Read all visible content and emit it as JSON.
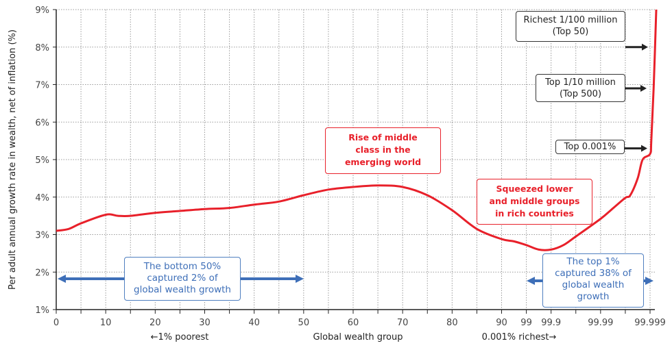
{
  "chart_data": {
    "type": "line",
    "title": "",
    "xlabel": "Global wealth group",
    "xlabel_left": "←1% poorest",
    "xlabel_right": "0.001% richest→",
    "ylabel": "Per adult annual growth rate in wealth, net of inflation (%)",
    "ylim": [
      1,
      9
    ],
    "grid": true,
    "y_ticks": [
      "1%",
      "2%",
      "3%",
      "4%",
      "5%",
      "6%",
      "7%",
      "8%",
      "9%"
    ],
    "x_tick_labels": [
      {
        "pos": 0,
        "label": "0"
      },
      {
        "pos": 2,
        "label": "10"
      },
      {
        "pos": 4,
        "label": "20"
      },
      {
        "pos": 6,
        "label": "30"
      },
      {
        "pos": 8,
        "label": "40"
      },
      {
        "pos": 10,
        "label": "50"
      },
      {
        "pos": 12,
        "label": "60"
      },
      {
        "pos": 14,
        "label": "70"
      },
      {
        "pos": 16,
        "label": "80"
      },
      {
        "pos": 18,
        "label": "90"
      },
      {
        "pos": 19,
        "label": "99"
      },
      {
        "pos": 20,
        "label": "99.9"
      },
      {
        "pos": 22,
        "label": "99.99"
      },
      {
        "pos": 24,
        "label": "99.999"
      }
    ],
    "x_tick_count": 24,
    "series": [
      {
        "name": "Growth rate",
        "color": "#e8202a",
        "points": [
          [
            0,
            3.1
          ],
          [
            0.5,
            3.15
          ],
          [
            1,
            3.3
          ],
          [
            2,
            3.53
          ],
          [
            2.5,
            3.5
          ],
          [
            3,
            3.5
          ],
          [
            4,
            3.58
          ],
          [
            5,
            3.63
          ],
          [
            6,
            3.68
          ],
          [
            7,
            3.71
          ],
          [
            8,
            3.8
          ],
          [
            9,
            3.88
          ],
          [
            10,
            4.05
          ],
          [
            11,
            4.2
          ],
          [
            12,
            4.27
          ],
          [
            13,
            4.31
          ],
          [
            14,
            4.27
          ],
          [
            15,
            4.05
          ],
          [
            16,
            3.65
          ],
          [
            17,
            3.15
          ],
          [
            18,
            2.88
          ],
          [
            18.5,
            2.82
          ],
          [
            19,
            2.72
          ],
          [
            19.5,
            2.6
          ],
          [
            20,
            2.6
          ],
          [
            20.5,
            2.72
          ],
          [
            21,
            2.95
          ],
          [
            22,
            3.42
          ],
          [
            22.5,
            3.7
          ],
          [
            23,
            3.98
          ],
          [
            23.2,
            4.05
          ],
          [
            23.5,
            4.5
          ],
          [
            23.7,
            5.0
          ],
          [
            24,
            5.15
          ],
          [
            24.05,
            5.5
          ],
          [
            24.15,
            7.0
          ],
          [
            24.25,
            9.0
          ]
        ]
      }
    ],
    "annotations": {
      "richest_100m": {
        "line1": "Richest 1/100 million",
        "line2": "(Top 50)",
        "arrow_y": 8.0
      },
      "top_10m": {
        "line1": "Top 1/10 million",
        "line2": "(Top 500)",
        "arrow_y": 6.9
      },
      "top_0001": {
        "line1": "Top 0.001%",
        "arrow_y": 5.3
      },
      "middle_class": {
        "line1": "Rise of middle",
        "line2": "class in the",
        "line3": "emerging world"
      },
      "squeezed": {
        "line1": "Squeezed lower",
        "line2": "and middle groups",
        "line3": "in rich countries"
      },
      "bottom50": {
        "line1": "The bottom 50%",
        "line2": "captured 2% of",
        "line3": "global wealth growth"
      },
      "top1": {
        "line1": "The top 1%",
        "line2": "captured 38% of",
        "line3": "global wealth",
        "line4": "growth"
      }
    },
    "colors": {
      "curve": "#e8202a",
      "blue": "#3e6fb8",
      "dark": "#222222",
      "grid": "#999999"
    }
  }
}
